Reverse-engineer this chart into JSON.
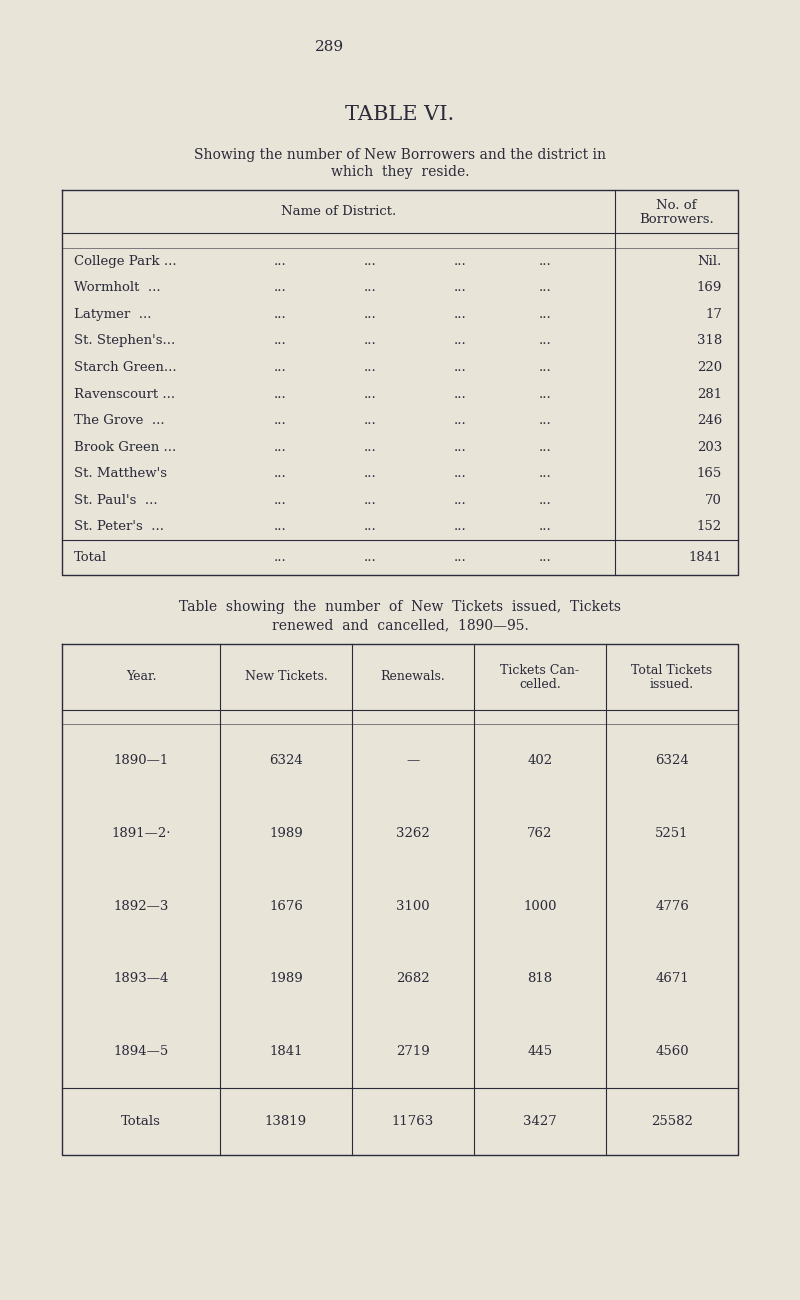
{
  "bg_color": "#e8e4d8",
  "text_color": "#2a2a3a",
  "page_number": "289",
  "title": "TABLE VI.",
  "subtitle1": "Showing the number of New Borrowers and the district in",
  "subtitle2": "which  they  reside.",
  "table1_header_col1": "Name of District.",
  "table1_rows": [
    [
      "College Park ...",
      "Nil."
    ],
    [
      "Wormholt  ...",
      "169"
    ],
    [
      "Latymer  ...",
      "17"
    ],
    [
      "St. Stephen's...",
      "318"
    ],
    [
      "Starch Green...",
      "220"
    ],
    [
      "Ravenscourt ...",
      "281"
    ],
    [
      "The Grove  ...",
      "246"
    ],
    [
      "Brook Green ...",
      "203"
    ],
    [
      "St. Matthew's",
      "165"
    ],
    [
      "St. Paul's  ...",
      "70"
    ],
    [
      "St. Peter's  ...",
      "152"
    ]
  ],
  "table1_total_label": "Total",
  "table1_total_value": "1841",
  "table2_intro1": "Table  showing  the  number  of  New  Tickets  issued,  Tickets",
  "table2_intro2": "renewed  and  cancelled,  1890—95.",
  "table2_headers": [
    "Year.",
    "New Tickets.",
    "Renewals.",
    "Tickets Can-\ncelled.",
    "Total Tickets\nissued."
  ],
  "table2_rows": [
    [
      "1890—1",
      "6324",
      "—",
      "402",
      "6324"
    ],
    [
      "1891—2·",
      "1989",
      "3262",
      "762",
      "5251"
    ],
    [
      "1892—3",
      "1676",
      "3100",
      "1000",
      "4776"
    ],
    [
      "1893—4",
      "1989",
      "2682",
      "818",
      "4671"
    ],
    [
      "1894—5",
      "1841",
      "2719",
      "445",
      "4560"
    ]
  ],
  "table2_total_label": "Totals",
  "table2_totals": [
    "13819",
    "11763",
    "3427",
    "25582"
  ],
  "font_size_page": 11,
  "font_size_title": 15,
  "font_size_subtitle": 10,
  "font_size_table": 9.5,
  "font_size_intro": 10
}
